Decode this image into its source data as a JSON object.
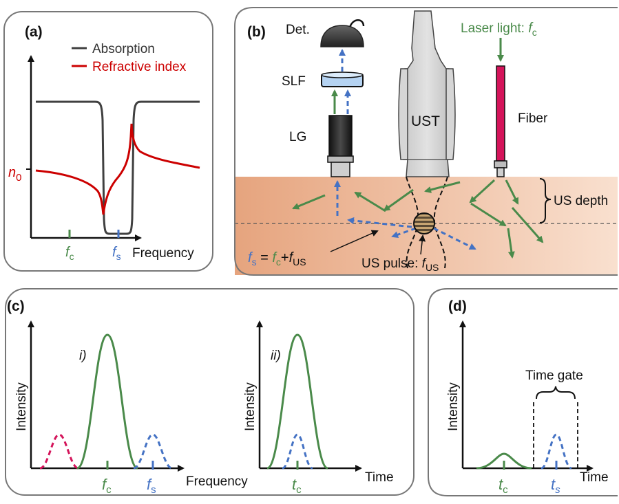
{
  "panels": {
    "a": {
      "label": "(a)",
      "legend": [
        {
          "name": "Absorption",
          "color": "#404040"
        },
        {
          "name": "Refractive index",
          "color": "#cc0000"
        }
      ],
      "n0": "n",
      "n0_sub": "0",
      "x_label": "Frequency",
      "fc": "f",
      "fc_sub": "c",
      "fs": "f",
      "fs_sub": "s"
    },
    "b": {
      "label": "(b)",
      "det": "Det.",
      "slf": "SLF",
      "lg": "LG",
      "ust": "UST",
      "fiber": "Fiber",
      "laser": "Laser light: ",
      "laser_f": "f",
      "laser_sub": "c",
      "us_depth": "US depth",
      "eq_fs": "f",
      "eq_fs_sub": "s",
      "eq_eq": " = ",
      "eq_fc": "f",
      "eq_fc_sub": "c",
      "eq_plus": "+",
      "eq_fus": "f",
      "eq_fus_sub": "US",
      "us_pulse": "US pulse: ",
      "us_pulse_f": "f",
      "us_pulse_sub": "US"
    },
    "c": {
      "label": "(c)",
      "i_label": "i)",
      "ii_label": "ii)",
      "y_label": "Intensity",
      "x_label_i": "Frequency",
      "x_label_ii": "Time",
      "fc": "f",
      "fc_sub": "c",
      "fs": "f",
      "fs_sub": "s",
      "tc": "t",
      "tc_sub": "c"
    },
    "d": {
      "label": "(d)",
      "y_label": "Intensity",
      "x_label": "Time",
      "time_gate": "Time gate",
      "tc": "t",
      "tc_sub": "c",
      "ts": "t",
      "ts_sub": "s"
    }
  },
  "colors": {
    "green": "#4a8a4a",
    "blue": "#4472c4",
    "red": "#cc0000",
    "magenta": "#d4145a",
    "gray": "#404040",
    "tissue_dark": "#e6a47e",
    "tissue_light": "#f9e0cf"
  }
}
